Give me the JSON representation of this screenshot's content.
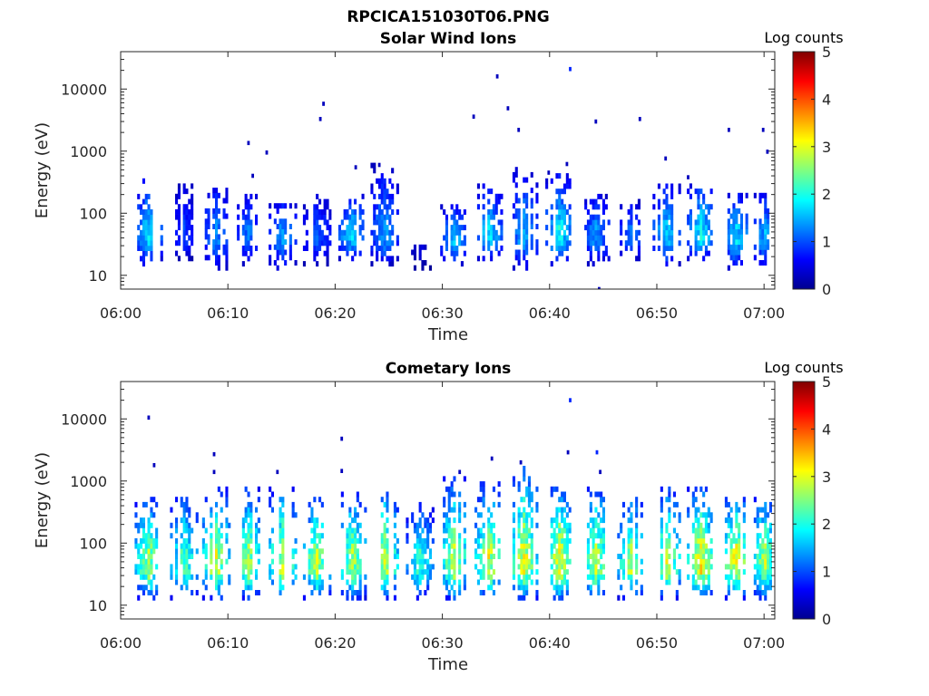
{
  "figure_title": "RPCICA151030T06.PNG",
  "chart_data": [
    {
      "type": "heatmap",
      "title": "Solar Wind Ions",
      "xlabel": "Time",
      "ylabel": "Energy (eV)",
      "y_scale": "log",
      "ylim": [
        6,
        40000
      ],
      "xlim": [
        "06:00",
        "07:01"
      ],
      "x_ticks": [
        "06:00",
        "06:10",
        "06:20",
        "06:30",
        "06:40",
        "06:50",
        "07:00"
      ],
      "y_ticks": [
        "10",
        "100",
        "1000",
        "10000"
      ],
      "colorbar": {
        "title": "Log counts",
        "range": [
          0,
          5
        ],
        "ticks": [
          "0",
          "1",
          "2",
          "3",
          "4",
          "5"
        ],
        "colormap": "jet"
      },
      "grid": false,
      "bursts": [
        {
          "t": 2.5,
          "e_lo": 14,
          "e_hi": 350,
          "peak": 1.8
        },
        {
          "t": 5.8,
          "e_lo": 17,
          "e_hi": 300,
          "peak": 1.0
        },
        {
          "t": 8.8,
          "e_lo": 12,
          "e_hi": 300,
          "peak": 1.4
        },
        {
          "t": 11.8,
          "e_lo": 14,
          "e_hi": 200,
          "peak": 1.3
        },
        {
          "t": 15.0,
          "e_lo": 12,
          "e_hi": 160,
          "peak": 1.5
        },
        {
          "t": 18.2,
          "e_lo": 14,
          "e_hi": 200,
          "peak": 1.2
        },
        {
          "t": 21.5,
          "e_lo": 17,
          "e_hi": 180,
          "peak": 1.9
        },
        {
          "t": 24.5,
          "e_lo": 14,
          "e_hi": 550,
          "peak": 1.5
        },
        {
          "t": 27.8,
          "e_lo": 12,
          "e_hi": 30,
          "peak": 0.6
        },
        {
          "t": 31.0,
          "e_lo": 14,
          "e_hi": 120,
          "peak": 1.8
        },
        {
          "t": 34.2,
          "e_lo": 17,
          "e_hi": 250,
          "peak": 1.9
        },
        {
          "t": 37.5,
          "e_lo": 12,
          "e_hi": 500,
          "peak": 1.6
        },
        {
          "t": 40.8,
          "e_lo": 14,
          "e_hi": 400,
          "peak": 2.0
        },
        {
          "t": 44.2,
          "e_lo": 14,
          "e_hi": 200,
          "peak": 1.5
        },
        {
          "t": 47.5,
          "e_lo": 17,
          "e_hi": 150,
          "peak": 1.3
        },
        {
          "t": 50.8,
          "e_lo": 14,
          "e_hi": 300,
          "peak": 1.8
        },
        {
          "t": 54.0,
          "e_lo": 17,
          "e_hi": 300,
          "peak": 2.0
        },
        {
          "t": 57.3,
          "e_lo": 12,
          "e_hi": 200,
          "peak": 1.8
        },
        {
          "t": 60.0,
          "e_lo": 12,
          "e_hi": 200,
          "peak": 1.6
        }
      ],
      "sparse_points": [
        {
          "t": 18.5,
          "e": 3300,
          "c": 0.3
        },
        {
          "t": 18.8,
          "e": 5800,
          "c": 0.3
        },
        {
          "t": 11.8,
          "e": 1350,
          "c": 0.3
        },
        {
          "t": 13.5,
          "e": 950,
          "c": 0.3
        },
        {
          "t": 12.2,
          "e": 400,
          "c": 0.3
        },
        {
          "t": 21.8,
          "e": 550,
          "c": 0.3
        },
        {
          "t": 32.8,
          "e": 3600,
          "c": 0.3
        },
        {
          "t": 35.0,
          "e": 16000,
          "c": 0.3
        },
        {
          "t": 36.0,
          "e": 4900,
          "c": 0.3
        },
        {
          "t": 37.0,
          "e": 2200,
          "c": 0.3
        },
        {
          "t": 41.8,
          "e": 21000,
          "c": 0.8
        },
        {
          "t": 44.2,
          "e": 3000,
          "c": 0.3
        },
        {
          "t": 48.3,
          "e": 3300,
          "c": 0.3
        },
        {
          "t": 50.7,
          "e": 760,
          "c": 0.3
        },
        {
          "t": 52.8,
          "e": 380,
          "c": 0.3
        },
        {
          "t": 56.6,
          "e": 2200,
          "c": 0.3
        },
        {
          "t": 59.8,
          "e": 2200,
          "c": 0.3
        },
        {
          "t": 60.2,
          "e": 980,
          "c": 0.3
        },
        {
          "t": 44.5,
          "e": 6,
          "c": 0.3
        },
        {
          "t": 41.5,
          "e": 620,
          "c": 0.3
        },
        {
          "t": 24.0,
          "e": 600,
          "c": 0.3
        },
        {
          "t": 39.8,
          "e": 450,
          "c": 0.3
        }
      ]
    },
    {
      "type": "heatmap",
      "title": "Cometary Ions",
      "xlabel": "Time",
      "ylabel": "Energy (eV)",
      "y_scale": "log",
      "ylim": [
        6,
        40000
      ],
      "xlim": [
        "06:00",
        "07:01"
      ],
      "x_ticks": [
        "06:00",
        "06:10",
        "06:20",
        "06:30",
        "06:40",
        "06:50",
        "07:00"
      ],
      "y_ticks": [
        "10",
        "100",
        "1000",
        "10000"
      ],
      "colorbar": {
        "title": "Log counts",
        "range": [
          0,
          5
        ],
        "ticks": [
          "0",
          "1",
          "2",
          "3",
          "4",
          "5"
        ],
        "colormap": "jet"
      },
      "grid": false,
      "bursts": [
        {
          "t": 2.5,
          "e_lo": 12,
          "e_hi": 550,
          "peak": 2.9
        },
        {
          "t": 5.8,
          "e_lo": 12,
          "e_hi": 550,
          "peak": 2.5
        },
        {
          "t": 8.8,
          "e_lo": 12,
          "e_hi": 700,
          "peak": 3.1
        },
        {
          "t": 11.8,
          "e_lo": 12,
          "e_hi": 700,
          "peak": 2.9
        },
        {
          "t": 15.0,
          "e_lo": 12,
          "e_hi": 700,
          "peak": 3.1
        },
        {
          "t": 18.2,
          "e_lo": 12,
          "e_hi": 550,
          "peak": 3.0
        },
        {
          "t": 21.5,
          "e_lo": 12,
          "e_hi": 600,
          "peak": 2.9
        },
        {
          "t": 24.5,
          "e_lo": 12,
          "e_hi": 800,
          "peak": 3.0
        },
        {
          "t": 27.8,
          "e_lo": 12,
          "e_hi": 400,
          "peak": 2.3
        },
        {
          "t": 31.0,
          "e_lo": 12,
          "e_hi": 1000,
          "peak": 3.0
        },
        {
          "t": 34.2,
          "e_lo": 12,
          "e_hi": 900,
          "peak": 3.1
        },
        {
          "t": 37.5,
          "e_lo": 12,
          "e_hi": 1600,
          "peak": 3.2
        },
        {
          "t": 40.8,
          "e_lo": 12,
          "e_hi": 800,
          "peak": 3.3
        },
        {
          "t": 44.2,
          "e_lo": 12,
          "e_hi": 700,
          "peak": 3.0
        },
        {
          "t": 47.5,
          "e_lo": 12,
          "e_hi": 500,
          "peak": 2.9
        },
        {
          "t": 50.8,
          "e_lo": 12,
          "e_hi": 700,
          "peak": 3.0
        },
        {
          "t": 54.0,
          "e_lo": 12,
          "e_hi": 700,
          "peak": 3.4
        },
        {
          "t": 57.3,
          "e_lo": 12,
          "e_hi": 550,
          "peak": 3.3
        },
        {
          "t": 60.0,
          "e_lo": 12,
          "e_hi": 550,
          "peak": 2.9
        }
      ],
      "sparse_points": [
        {
          "t": 2.5,
          "e": 10500,
          "c": 0.3
        },
        {
          "t": 3.0,
          "e": 1800,
          "c": 0.3
        },
        {
          "t": 8.6,
          "e": 2700,
          "c": 0.3
        },
        {
          "t": 8.6,
          "e": 1400,
          "c": 0.3
        },
        {
          "t": 14.5,
          "e": 1400,
          "c": 0.3
        },
        {
          "t": 20.5,
          "e": 4800,
          "c": 0.3
        },
        {
          "t": 20.5,
          "e": 1450,
          "c": 0.3
        },
        {
          "t": 34.5,
          "e": 2300,
          "c": 0.3
        },
        {
          "t": 41.8,
          "e": 20000,
          "c": 0.8
        },
        {
          "t": 41.6,
          "e": 2900,
          "c": 0.3
        },
        {
          "t": 44.3,
          "e": 2900,
          "c": 0.8
        },
        {
          "t": 44.6,
          "e": 1400,
          "c": 0.3
        },
        {
          "t": 37.2,
          "e": 2000,
          "c": 0.3
        },
        {
          "t": 31.5,
          "e": 1400,
          "c": 0.3
        }
      ]
    }
  ]
}
